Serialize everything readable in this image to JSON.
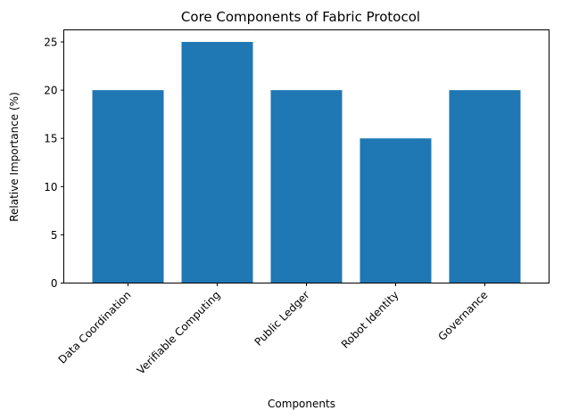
{
  "chart_data": {
    "type": "bar",
    "title": "Core Components of Fabric Protocol",
    "xlabel": "Components",
    "ylabel": "Relative Importance (%)",
    "categories": [
      "Data Coordination",
      "Verifiable Computing",
      "Public Ledger",
      "Robot Identity",
      "Governance"
    ],
    "values": [
      20,
      25,
      20,
      15,
      20
    ],
    "ylim": [
      0,
      26.25
    ],
    "yticks": [
      0,
      5,
      10,
      15,
      20,
      25
    ],
    "bar_color": "#1f77b4",
    "grid": false,
    "legend": false
  }
}
